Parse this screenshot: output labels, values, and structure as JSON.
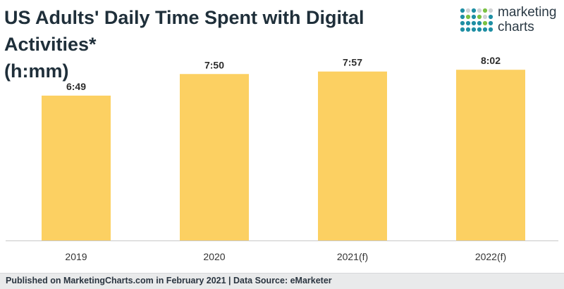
{
  "header": {
    "title_line1": "US Adults' Daily Time Spent with Digital Activities*",
    "title_line2": "(h:mm)"
  },
  "logo": {
    "line1": "marketing",
    "line2": "charts",
    "icon": "dot-grid-icon",
    "colors": [
      "#1f8fa4",
      "#7ac143",
      "#cfd2d4"
    ]
  },
  "chart_data": {
    "type": "bar",
    "title": "US Adults' Daily Time Spent with Digital Activities* (h:mm)",
    "categories": [
      "2019",
      "2020",
      "2021(f)",
      "2022(f)"
    ],
    "values": [
      409,
      470,
      477,
      482
    ],
    "value_unit": "minutes",
    "data_labels": [
      "6:49",
      "7:50",
      "7:57",
      "8:02"
    ],
    "xlabel": "",
    "ylabel": "",
    "ylim": [
      0,
      540
    ],
    "grid": false,
    "bar_color": "#fcd062"
  },
  "footer": {
    "text": "Published on MarketingCharts.com in February 2021 | Data Source: eMarketer"
  }
}
